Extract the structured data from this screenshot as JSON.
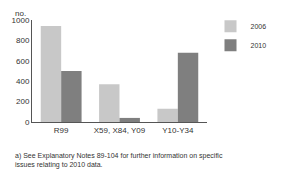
{
  "chart_data": {
    "type": "bar",
    "ylabel": "no.",
    "categories": [
      "R99",
      "X59, X84, Y09",
      "Y10-Y34"
    ],
    "series": [
      {
        "name": "2006",
        "color": "#c8c8c8",
        "values": [
          940,
          370,
          130
        ]
      },
      {
        "name": "2010",
        "color": "#7f7f7f",
        "values": [
          500,
          40,
          680
        ]
      }
    ],
    "ylim": [
      0,
      1000
    ],
    "yticks": [
      0,
      200,
      400,
      600,
      800,
      1000
    ],
    "grid": true,
    "legend": "top right",
    "annotations": [
      "a) See Explanatory Notes 89-104 for further information on specific\nissues relating to 2010 data."
    ]
  }
}
